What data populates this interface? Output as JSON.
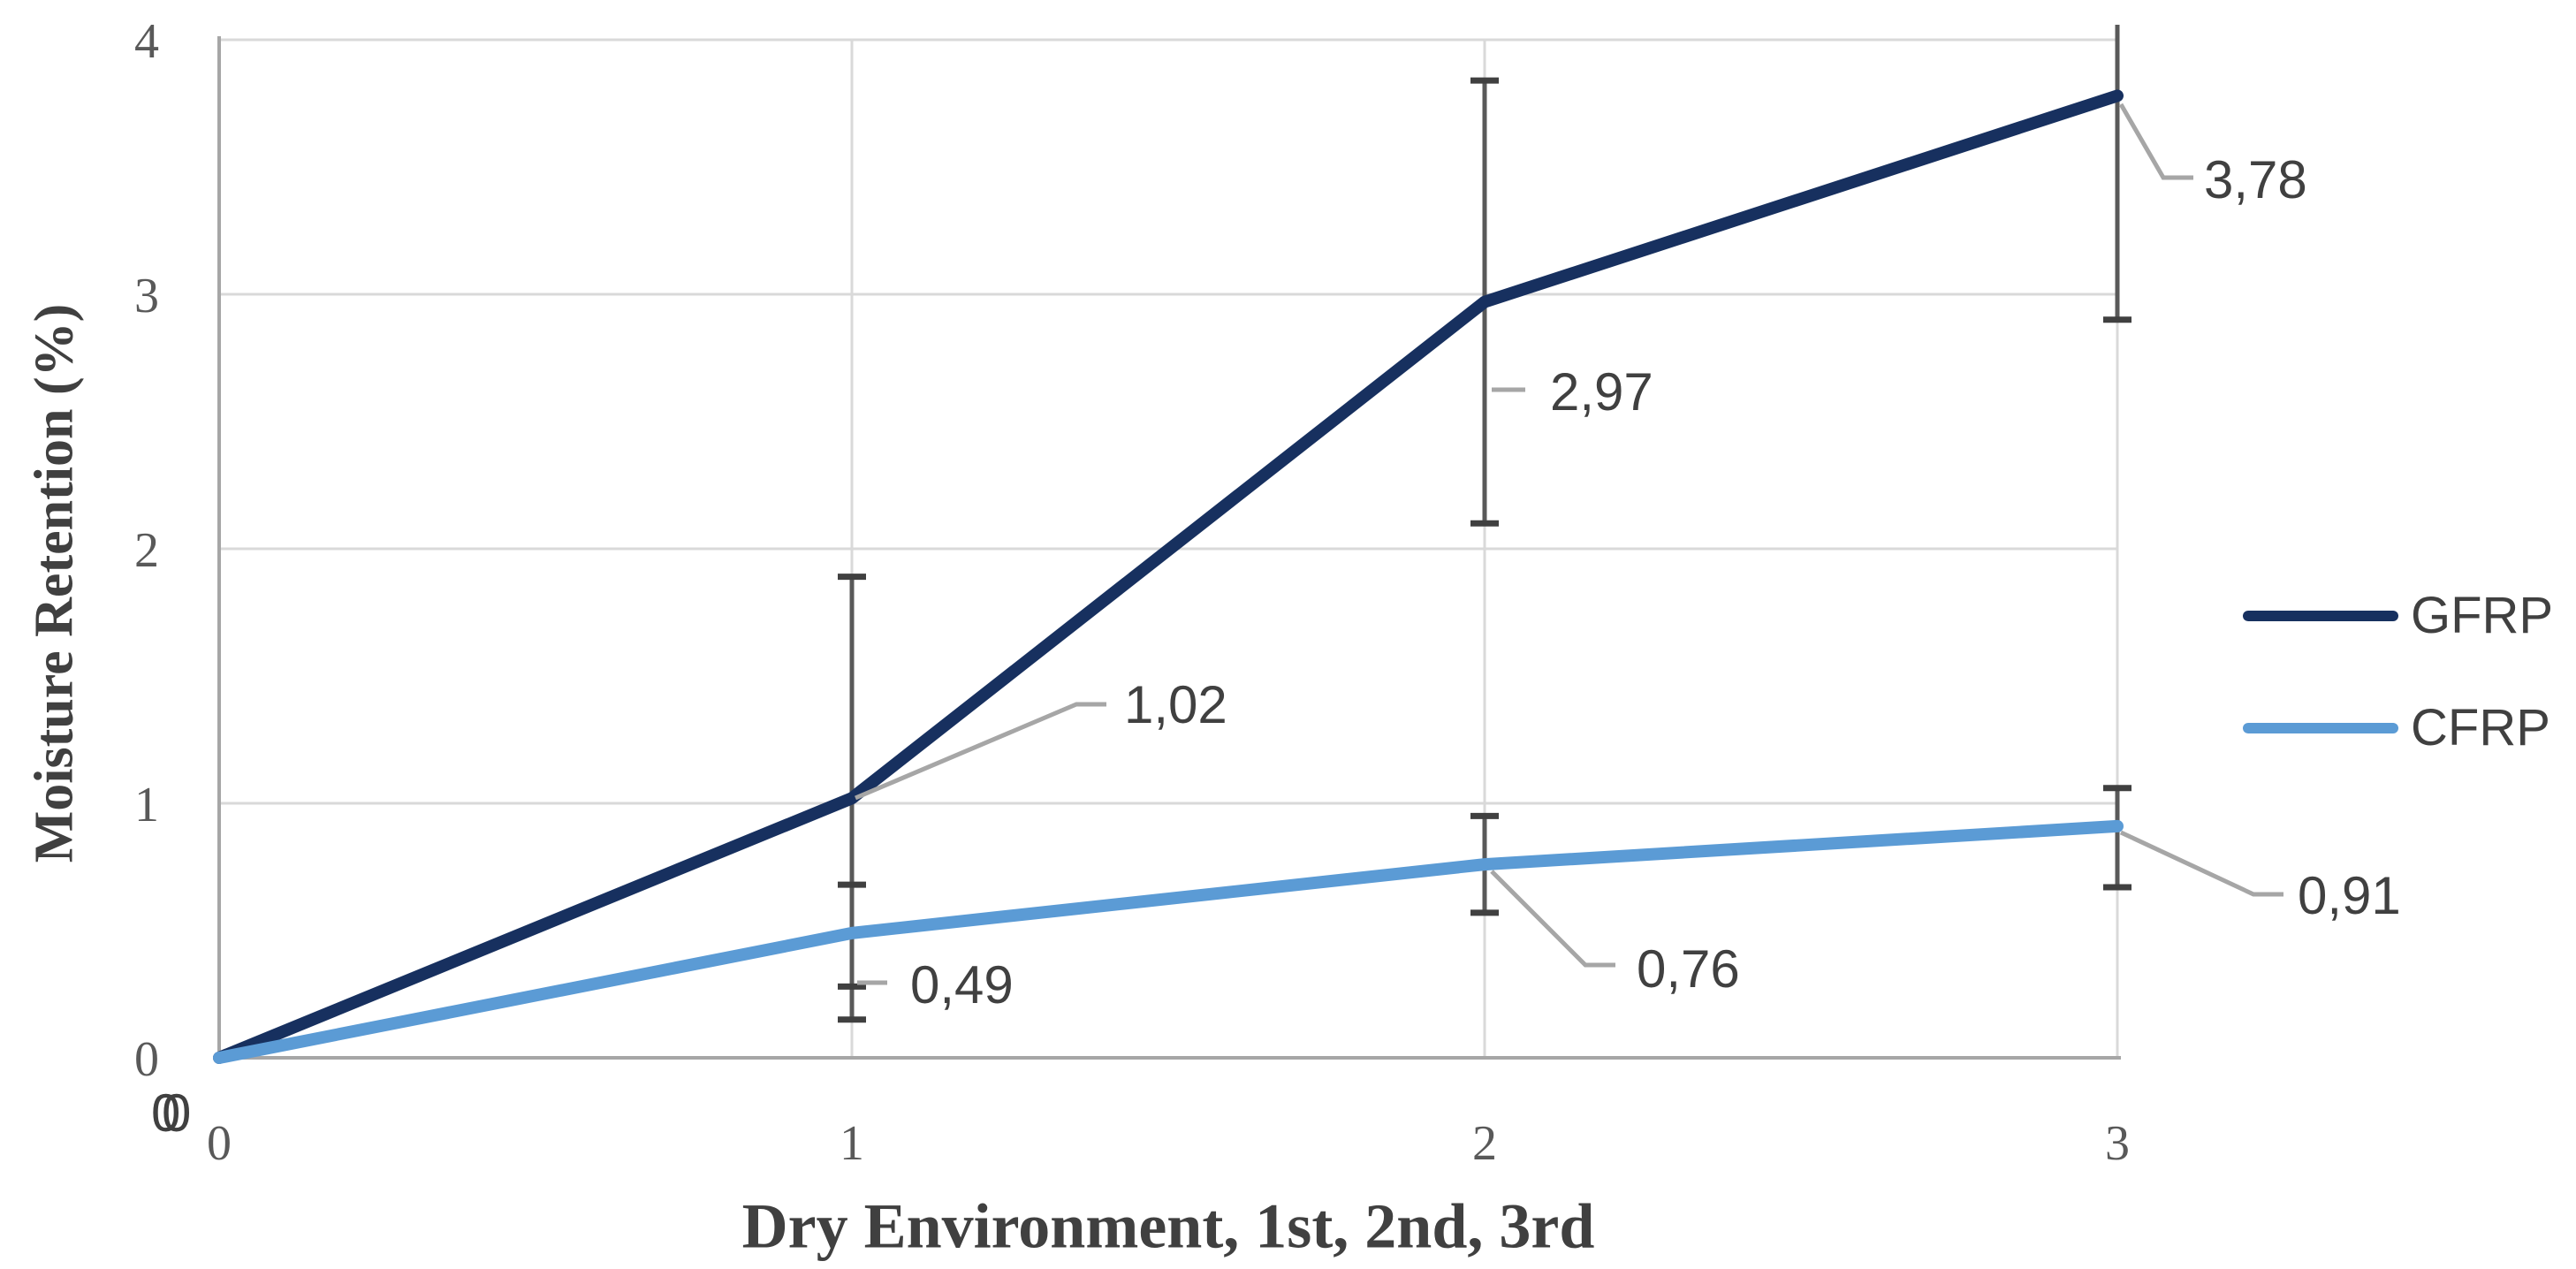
{
  "axis": {
    "y_title": "Moisture Retention (%)",
    "x_title": "Dry Environment, 1st, 2nd, 3rd",
    "y_ticks": [
      "0",
      "1",
      "2",
      "3",
      "4"
    ],
    "x_ticks": [
      "0",
      "1",
      "2",
      "3"
    ]
  },
  "legend": [
    {
      "label": "GFRP",
      "color": "#17305F"
    },
    {
      "label": "CFRP",
      "color": "#5B9BD5"
    }
  ],
  "colors": {
    "gfrp": "#17305F",
    "cfrp": "#5B9BD5",
    "grid": "#D9D9D9",
    "axis_line": "#A6A6A6",
    "error_stem": "#595959",
    "error_cap": "#404040",
    "leader": "#A6A6A6",
    "data_label_text": "#404040",
    "tick_text": "#595959"
  },
  "chart_data": {
    "type": "line",
    "x": [
      0,
      1,
      2,
      3
    ],
    "xlabel": "Dry Environment, 1st, 2nd, 3rd",
    "ylabel": "Moisture Retention (%)",
    "ylim": [
      0,
      4
    ],
    "xlim": [
      0,
      3
    ],
    "grid": true,
    "legend_position": "right",
    "decimal_separator": ",",
    "series": [
      {
        "name": "GFRP",
        "color": "#17305F",
        "values": [
          0,
          1.02,
          2.97,
          3.78
        ],
        "labels": [
          "0",
          "1,02",
          "2,97",
          "3,78"
        ],
        "error_bars": [
          null,
          {
            "low": 0.15,
            "high": 1.89,
            "clip_top": false
          },
          {
            "low": 2.1,
            "high": 3.84,
            "clip_top": false
          },
          {
            "low": 2.9,
            "high": 4.06,
            "clip_top": true
          }
        ]
      },
      {
        "name": "CFRP",
        "color": "#5B9BD5",
        "values": [
          0,
          0.49,
          0.76,
          0.91
        ],
        "labels": [
          "0",
          "0,49",
          "0,76",
          "0,91"
        ],
        "error_bars": [
          null,
          {
            "low": 0.28,
            "high": 0.68,
            "clip_top": false
          },
          {
            "low": 0.57,
            "high": 0.95,
            "clip_top": false
          },
          {
            "low": 0.67,
            "high": 1.06,
            "clip_top": false
          }
        ]
      }
    ]
  }
}
